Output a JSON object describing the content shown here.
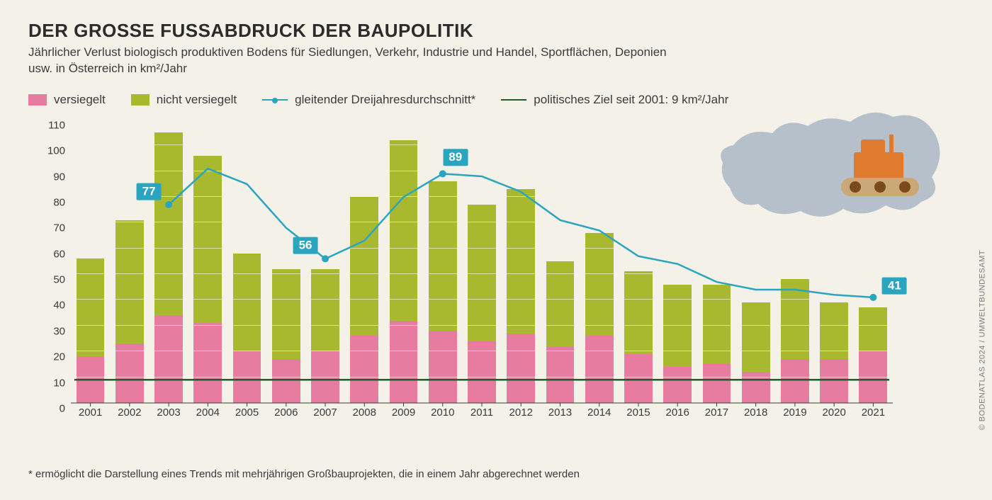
{
  "title": "DER GROSSE FUSSABDRUCK DER BAUPOLITIK",
  "subtitle": "Jährlicher Verlust biologisch produktiven Bodens für Siedlungen, Verkehr, Industrie und Handel, Sportflächen, Deponien usw. in Österreich in km²/Jahr",
  "legend": {
    "sealed": "versiegelt",
    "unsealed": "nicht versiegelt",
    "avg": "gleitender Dreijahresdurchschnitt*",
    "target": "politisches Ziel seit 2001: 9 km²/Jahr"
  },
  "footnote": "* ermöglicht die Darstellung eines Trends mit mehrjährigen Großbauprojekten, die in einem Jahr abgerechnet werden",
  "credit": "© BODENATLAS 2024 / UMWELTBUNDESAMT",
  "colors": {
    "background": "#f4f1e8",
    "text": "#3a3a3a",
    "sealed": "#e77ca0",
    "unsealed": "#a9b92f",
    "avg_line": "#2aa5c0",
    "avg_marker": "#2aa5c0",
    "target_line": "#1e5b2e",
    "callout_bg": "#2aa5c0",
    "callout_text": "#ffffff",
    "map_fill": "#b6c0ca",
    "bulldozer_body": "#e07b2e",
    "bulldozer_track": "#caa878",
    "bulldozer_wheel": "#7a4a1a",
    "bar_inner_line": "rgba(255,255,255,0.55)"
  },
  "chart": {
    "type": "stacked-bar-with-line",
    "y": {
      "min": 0,
      "max": 110,
      "step": 10
    },
    "target_value": 9,
    "years": [
      2001,
      2002,
      2003,
      2004,
      2005,
      2006,
      2007,
      2008,
      2009,
      2010,
      2011,
      2012,
      2013,
      2014,
      2015,
      2016,
      2017,
      2018,
      2019,
      2020,
      2021
    ],
    "sealed": [
      18,
      23,
      34,
      31,
      20,
      17,
      20,
      26,
      32,
      28,
      24,
      27,
      22,
      26,
      19,
      14,
      15,
      12,
      17,
      17,
      20
    ],
    "unsealed": [
      38,
      48,
      71,
      65,
      38,
      35,
      32,
      54,
      70,
      58,
      53,
      56,
      33,
      40,
      32,
      32,
      31,
      27,
      31,
      22,
      17
    ],
    "avg_line": [
      null,
      null,
      77,
      91,
      85,
      68,
      56,
      63,
      80,
      89,
      88,
      82,
      71,
      67,
      57,
      54,
      47,
      44,
      44,
      42,
      41
    ],
    "callouts": [
      {
        "year": 2003,
        "value": 77,
        "label": "77",
        "pos": "left"
      },
      {
        "year": 2007,
        "value": 56,
        "label": "56",
        "pos": "left"
      },
      {
        "year": 2010,
        "value": 89,
        "label": "89",
        "pos": "above"
      },
      {
        "year": 2021,
        "value": 41,
        "label": "41",
        "pos": "right"
      }
    ],
    "bar_width_ratio": 0.72,
    "hline_step": 10,
    "title_fontsize": 26,
    "subtitle_fontsize": 17,
    "axis_fontsize": 15,
    "legend_fontsize": 17
  },
  "illustration": {
    "map": "austria-silhouette",
    "icon": "bulldozer"
  }
}
